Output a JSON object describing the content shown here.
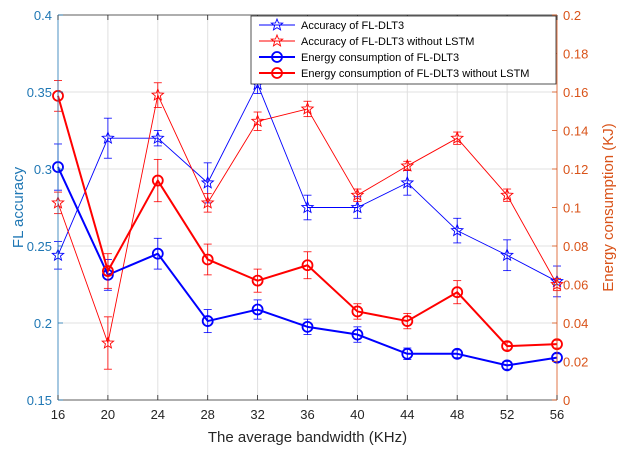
{
  "chart_data": {
    "type": "line",
    "title": "",
    "xlabel": "The average bandwidth (KHz)",
    "ylabel_left": "FL accuracy",
    "ylabel_right": "Energy consumption (KJ)",
    "x": [
      16,
      20,
      24,
      28,
      32,
      36,
      40,
      44,
      48,
      52,
      56
    ],
    "x_ticks": [
      "16",
      "20",
      "24",
      "28",
      "32",
      "36",
      "40",
      "44",
      "48",
      "52",
      "56"
    ],
    "xlim": [
      16,
      56
    ],
    "ylim_left": [
      0.15,
      0.4
    ],
    "yticks_left": [
      "0.15",
      "0.2",
      "0.25",
      "0.3",
      "0.35",
      "0.4"
    ],
    "ylim_right": [
      0,
      0.2
    ],
    "yticks_right": [
      "0",
      "0.02",
      "0.04",
      "0.06",
      "0.08",
      "0.1",
      "0.12",
      "0.14",
      "0.16",
      "0.18",
      "0.2"
    ],
    "grid": true,
    "legend_position": "top-right",
    "colors": {
      "left_axis": "#1f77b4",
      "right_axis": "#d95319",
      "blue": "#0000ff",
      "red": "#ff0000",
      "grid": "#e0e0e0",
      "frame": "#262626"
    },
    "series": [
      {
        "name": "Accuracy of FL-DLT3",
        "axis": "left",
        "color": "#0000ff",
        "marker": "star",
        "line_width": "thin",
        "values": [
          0.244,
          0.32,
          0.32,
          0.291,
          0.355,
          0.275,
          0.275,
          0.291,
          0.26,
          0.244,
          0.227
        ],
        "errors": [
          0.009,
          0.013,
          0.005,
          0.013,
          0.006,
          0.008,
          0.007,
          0.008,
          0.008,
          0.01,
          0.01
        ]
      },
      {
        "name": "Accuracy of FL-DLT3 without LSTM",
        "axis": "left",
        "color": "#ff0000",
        "marker": "star",
        "line_width": "thin",
        "values": [
          0.278,
          0.187,
          0.348,
          0.278,
          0.331,
          0.339,
          0.283,
          0.302,
          0.32,
          0.283,
          0.225
        ],
        "errors": [
          0.007,
          0.017,
          0.008,
          0.006,
          0.006,
          0.005,
          0.004,
          0.003,
          0.004,
          0.004,
          0.004
        ]
      },
      {
        "name": "Energy consumption of FL-DLT3",
        "axis": "right",
        "color": "#0000ff",
        "marker": "circle",
        "line_width": "thick",
        "values": [
          0.121,
          0.065,
          0.076,
          0.041,
          0.047,
          0.038,
          0.034,
          0.024,
          0.024,
          0.018,
          0.022
        ],
        "errors": [
          0.012,
          0.008,
          0.008,
          0.006,
          0.005,
          0.004,
          0.004,
          0.003,
          0.002,
          0.002,
          0.002
        ]
      },
      {
        "name": "Energy consumption of FL-DLT3 without LSTM",
        "axis": "right",
        "color": "#ff0000",
        "marker": "circle",
        "line_width": "thick",
        "values": [
          0.158,
          0.067,
          0.114,
          0.073,
          0.062,
          0.07,
          0.046,
          0.041,
          0.056,
          0.028,
          0.029
        ],
        "errors": [
          0.008,
          0.009,
          0.011,
          0.008,
          0.006,
          0.007,
          0.004,
          0.004,
          0.006,
          0.002,
          0.002
        ]
      }
    ]
  }
}
